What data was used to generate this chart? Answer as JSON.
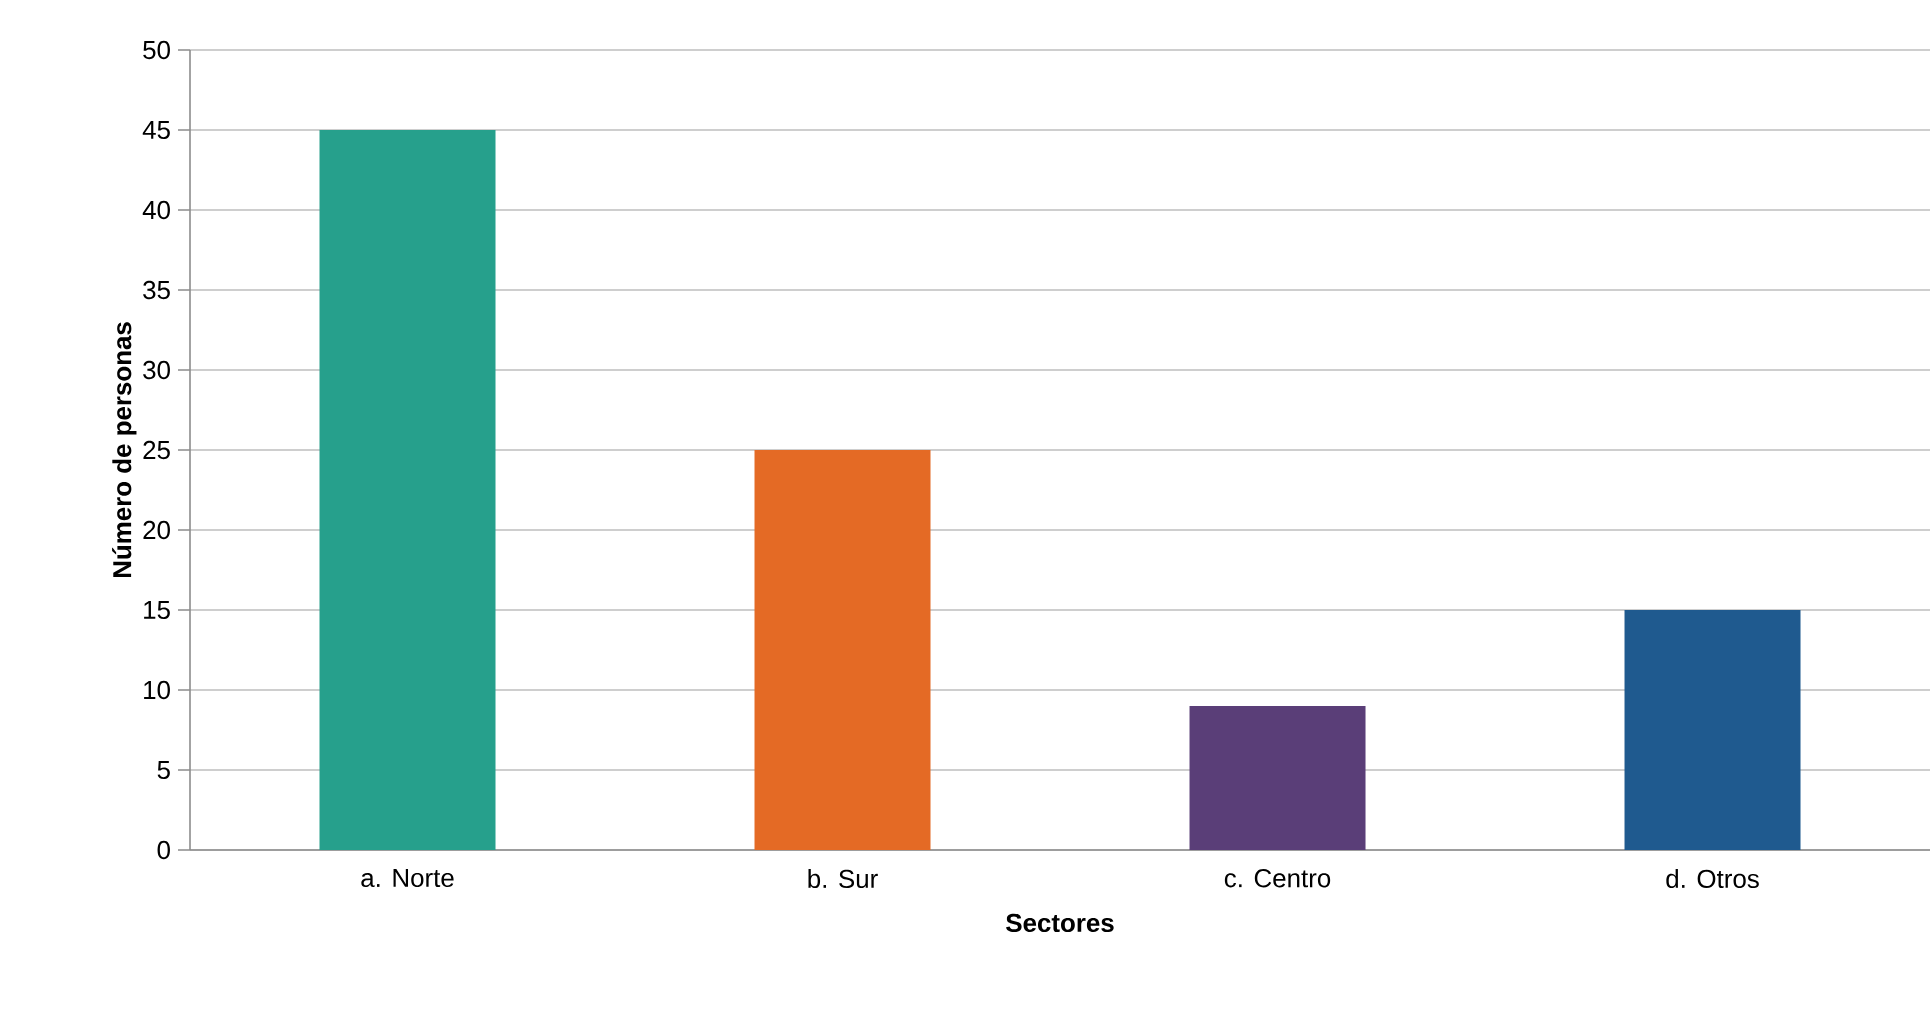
{
  "chart_data": {
    "type": "bar",
    "xlabel": "Sectores",
    "ylabel": "Número de personas",
    "categories": [
      "a. Norte",
      "b. Sur",
      "c. Centro",
      "d. Otros"
    ],
    "values": [
      45,
      25,
      9,
      15
    ],
    "colors": [
      "#26a08c",
      "#e46a25",
      "#5a3e78",
      "#1f5a8f"
    ],
    "ylim": [
      0,
      50
    ],
    "yticks": [
      0,
      5,
      10,
      15,
      20,
      25,
      30,
      35,
      40,
      45,
      50
    ],
    "grid": "y"
  }
}
